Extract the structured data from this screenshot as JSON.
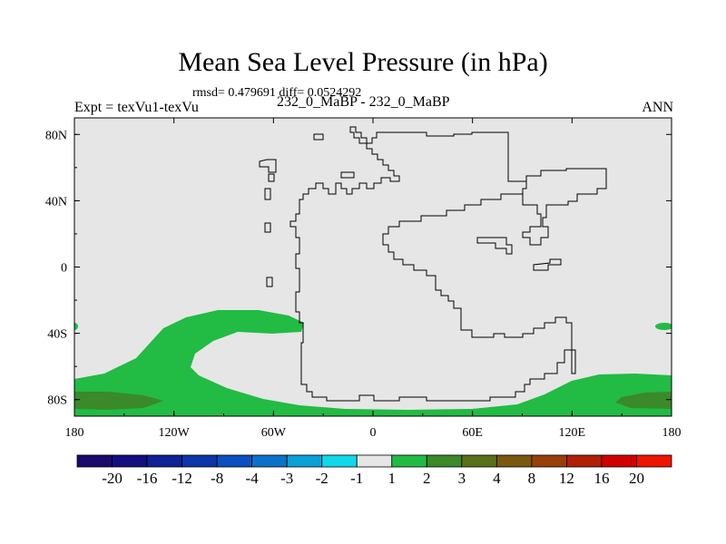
{
  "title": "Mean Sea Level Pressure (in hPa)",
  "stats_line": "rmsd= 0.479691 diff= 0.0524292",
  "experiment_label": "Expt = texVu1-texVu",
  "case_label": "232_0_MaBP - 232_0_MaBP",
  "season_label": "ANN",
  "chart_data": {
    "type": "heatmap",
    "title": "Mean Sea Level Pressure (in hPa)",
    "subtitle": "232_0_MaBP - 232_0_MaBP",
    "x_axis": {
      "ticks": [
        {
          "value": -180,
          "label": "180"
        },
        {
          "value": -120,
          "label": "120W"
        },
        {
          "value": -60,
          "label": "60W"
        },
        {
          "value": 0,
          "label": "0"
        },
        {
          "value": 60,
          "label": "60E"
        },
        {
          "value": 120,
          "label": "120E"
        },
        {
          "value": 180,
          "label": "180"
        }
      ],
      "range": [
        -180,
        180
      ]
    },
    "y_axis": {
      "ticks": [
        {
          "value": 80,
          "label": "80N"
        },
        {
          "value": 40,
          "label": "40N"
        },
        {
          "value": 0,
          "label": "0"
        },
        {
          "value": -40,
          "label": "40S"
        },
        {
          "value": -80,
          "label": "80S"
        }
      ],
      "range": [
        -90,
        90
      ]
    },
    "colorbar": {
      "levels": [
        "-20",
        "-16",
        "-12",
        "-8",
        "-4",
        "-3",
        "-2",
        "-1",
        "1",
        "2",
        "3",
        "4",
        "8",
        "12",
        "16",
        "20"
      ],
      "colors": [
        "#1a0a6e",
        "#140f80",
        "#0f2296",
        "#0a36a8",
        "#0b4fbf",
        "#0a72c8",
        "#0aa0d8",
        "#10d8e8",
        "#e6e6e6",
        "#22bb44",
        "#3a8a2a",
        "#5a7018",
        "#7a5810",
        "#984008",
        "#b02004",
        "#d00000",
        "#ee1500"
      ]
    },
    "field_regions": [
      {
        "name": "southern-band",
        "level_class": "1 to 2",
        "lon_range": [
          -180,
          180
        ],
        "lat_range": [
          -90,
          -68
        ]
      },
      {
        "name": "south-pacific-arc",
        "level_class": "1 to 2",
        "lon_range": [
          -180,
          -45
        ],
        "lat_range": [
          -90,
          -28
        ]
      },
      {
        "name": "polar-dark-west",
        "level_class": "2 to 3",
        "lon_range": [
          -180,
          -140
        ],
        "lat_range": [
          -88,
          -75
        ]
      },
      {
        "name": "polar-dark-east",
        "level_class": "2 to 3",
        "lon_range": [
          147,
          180
        ],
        "lat_range": [
          -88,
          -75
        ]
      },
      {
        "name": "small-patch-east",
        "level_class": "1 to 2",
        "lon_range": [
          168,
          178
        ],
        "lat_range": [
          -38,
          -33
        ]
      }
    ]
  }
}
